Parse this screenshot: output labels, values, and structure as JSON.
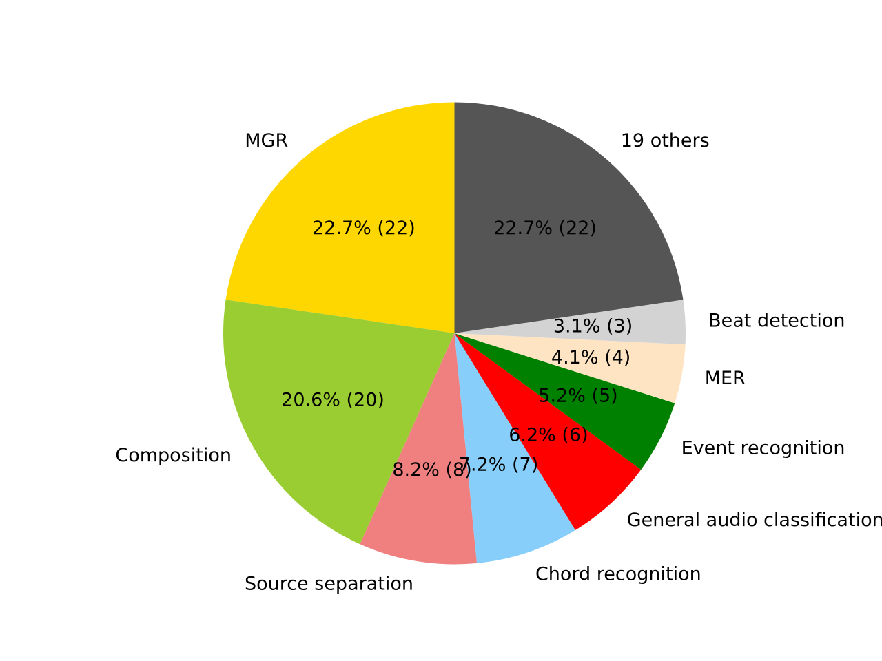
{
  "chart_data": {
    "type": "pie",
    "slices": [
      {
        "label": "MGR",
        "count": 22,
        "percent_text": "22.7%  (22)",
        "color": "#FFD700"
      },
      {
        "label": "Composition",
        "count": 20,
        "percent_text": "20.6%  (20)",
        "color": "#9ACD32"
      },
      {
        "label": "Source separation",
        "count": 8,
        "percent_text": "8.2%  (8)",
        "color": "#F08080"
      },
      {
        "label": "Chord recognition",
        "count": 7,
        "percent_text": "7.2%  (7)",
        "color": "#87CEFA"
      },
      {
        "label": "General audio classification",
        "count": 6,
        "percent_text": "6.2%  (6)",
        "color": "#FF0000"
      },
      {
        "label": "Event recognition",
        "count": 5,
        "percent_text": "5.2%  (5)",
        "color": "#008000"
      },
      {
        "label": "MER",
        "count": 4,
        "percent_text": "4.1%  (4)",
        "color": "#FFE4C4"
      },
      {
        "label": "Beat detection",
        "count": 3,
        "percent_text": "3.1%  (3)",
        "color": "#D3D3D3"
      },
      {
        "label": "19 others",
        "count": 22,
        "percent_text": "22.7%  (22)",
        "color": "#555555"
      }
    ],
    "start_angle_deg": 90,
    "direction": "counterclockwise"
  }
}
